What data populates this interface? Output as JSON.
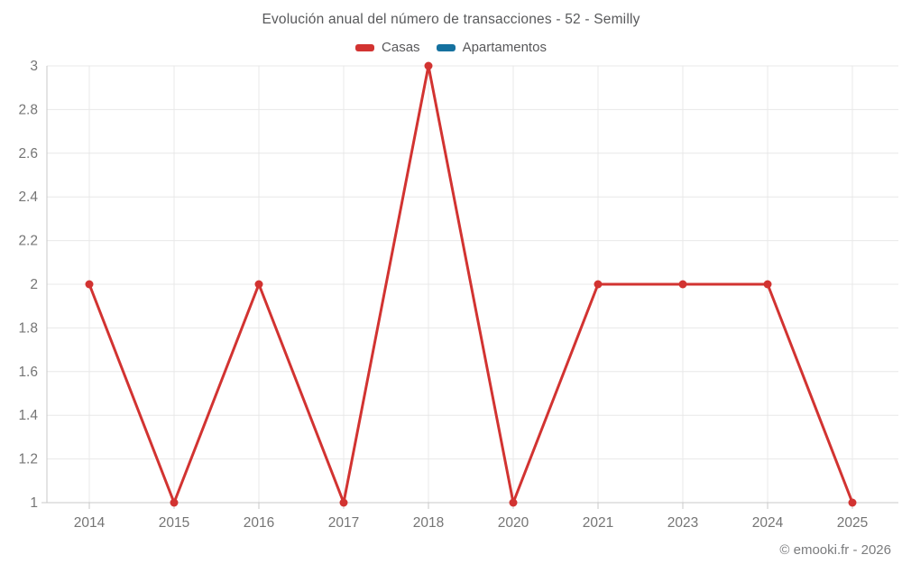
{
  "chart_data": {
    "type": "line",
    "title": "Evolución anual del número de transacciones - 52 - Semilly",
    "categories": [
      "2014",
      "2015",
      "2016",
      "2017",
      "2018",
      "2020",
      "2021",
      "2023",
      "2024",
      "2025"
    ],
    "series": [
      {
        "name": "Casas",
        "color": "#d23331",
        "values": [
          2,
          1,
          2,
          1,
          3,
          1,
          2,
          2,
          2,
          1
        ]
      },
      {
        "name": "Apartamentos",
        "color": "#15719f",
        "values": []
      }
    ],
    "ylim": [
      1,
      3
    ],
    "yticks": [
      1,
      1.2,
      1.4,
      1.6,
      1.8,
      2,
      2.2,
      2.4,
      2.6,
      2.8,
      3
    ],
    "grid": true,
    "legend_position": "top",
    "xlabel": "",
    "ylabel": ""
  },
  "footer": {
    "attribution": "© emooki.fr - 2026"
  }
}
